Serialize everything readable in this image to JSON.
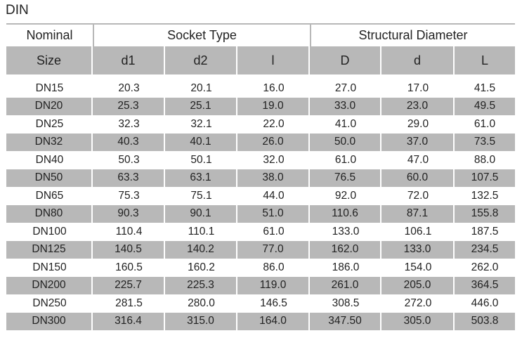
{
  "title": "DIN",
  "header": {
    "nominal": "Nominal",
    "socket_type": "Socket Type",
    "structural_diameter": "Structural Diameter",
    "size": "Size",
    "d1": "d1",
    "d2": "d2",
    "l": "l",
    "D": "D",
    "d": "d",
    "L": "L"
  },
  "rows": [
    [
      "DN15",
      "20.3",
      "20.1",
      "16.0",
      "27.0",
      "17.0",
      "41.5"
    ],
    [
      "DN20",
      "25.3",
      "25.1",
      "19.0",
      "33.0",
      "23.0",
      "49.5"
    ],
    [
      "DN25",
      "32.3",
      "32.1",
      "22.0",
      "41.0",
      "29.0",
      "61.0"
    ],
    [
      "DN32",
      "40.3",
      "40.1",
      "26.0",
      "50.0",
      "37.0",
      "73.5"
    ],
    [
      "DN40",
      "50.3",
      "50.1",
      "32.0",
      "61.0",
      "47.0",
      "88.0"
    ],
    [
      "DN50",
      "63.3",
      "63.1",
      "38.0",
      "76.5",
      "60.0",
      "107.5"
    ],
    [
      "DN65",
      "75.3",
      "75.1",
      "44.0",
      "92.0",
      "72.0",
      "132.5"
    ],
    [
      "DN80",
      "90.3",
      "90.1",
      "51.0",
      "110.6",
      "87.1",
      "155.8"
    ],
    [
      "DN100",
      "110.4",
      "110.1",
      "61.0",
      "133.0",
      "106.1",
      "187.5"
    ],
    [
      "DN125",
      "140.5",
      "140.2",
      "77.0",
      "162.0",
      "133.0",
      "234.5"
    ],
    [
      "DN150",
      "160.5",
      "160.2",
      "86.0",
      "186.0",
      "154.0",
      "262.0"
    ],
    [
      "DN200",
      "225.7",
      "225.3",
      "119.0",
      "261.0",
      "205.0",
      "364.5"
    ],
    [
      "DN250",
      "281.5",
      "280.0",
      "146.5",
      "308.5",
      "272.0",
      "446.0"
    ],
    [
      "DN300",
      "316.4",
      "315.0",
      "164.0",
      "347.50",
      "305.0",
      "503.8"
    ]
  ]
}
